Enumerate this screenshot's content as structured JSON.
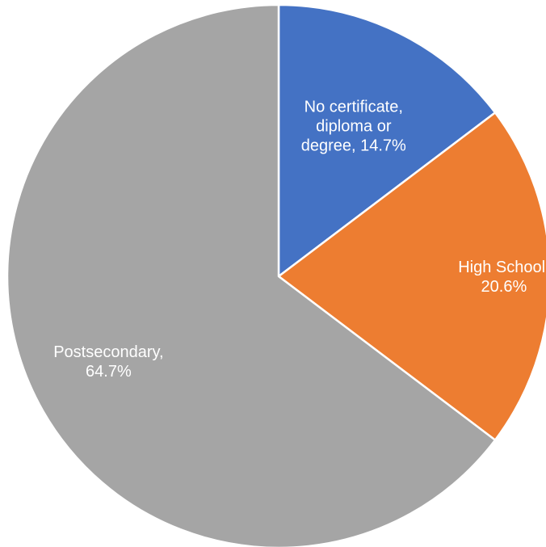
{
  "chart_data": {
    "type": "pie",
    "title": "",
    "start_angle_deg": 0,
    "direction": "clockwise",
    "slice_border_color": "#ffffff",
    "slices": [
      {
        "category": "No certificate, diploma or degree",
        "value": 14.7,
        "value_label": "14.7%",
        "label_lines": [
          "No certificate,",
          "diploma or",
          "degree, 14.7%"
        ],
        "color": "#4472C4"
      },
      {
        "category": "High School",
        "value": 20.6,
        "value_label": "20.6%",
        "label_lines": [
          "High School,",
          "20.6%"
        ],
        "color": "#ED7D31"
      },
      {
        "category": "Postsecondary",
        "value": 64.7,
        "value_label": "64.7%",
        "label_lines": [
          "Postsecondary,",
          "64.7%"
        ],
        "color": "#A5A5A5"
      }
    ]
  }
}
